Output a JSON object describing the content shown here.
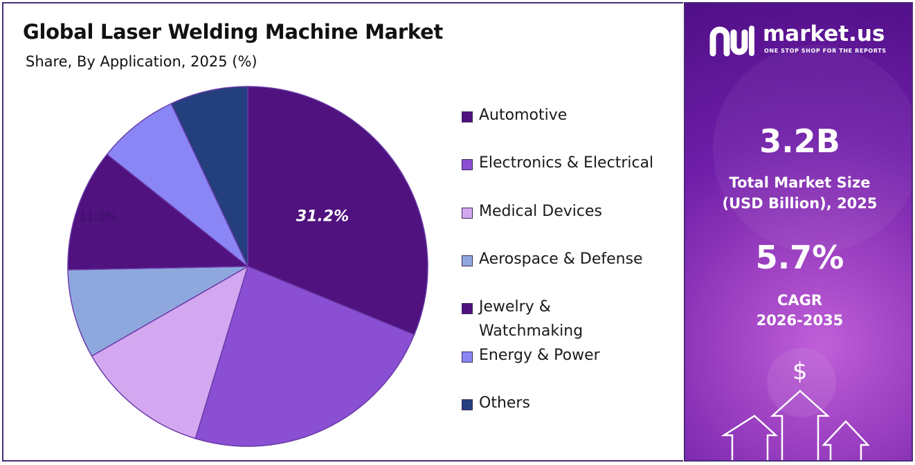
{
  "chart_data": {
    "type": "pie",
    "title": "Global Laser Welding Machine Market",
    "subtitle": "Share, By Application, 2025 (%)",
    "slices": [
      {
        "label": "Automotive",
        "value": 31.2,
        "color": "#4f127e",
        "data_label": "31.2%"
      },
      {
        "label": "Electronics & Electrical",
        "value": 23.5,
        "color": "#8a4fd2",
        "data_label": ""
      },
      {
        "label": "Medical Devices",
        "value": 12.0,
        "color": "#d3a8f0",
        "data_label": ""
      },
      {
        "label": "Aerospace & Defense",
        "value": 8.0,
        "color": "#8ea8de",
        "data_label": ""
      },
      {
        "label": "Jewelry & Watchmaking",
        "value": 11.0,
        "color": "#4f127e",
        "data_label": "11.0%"
      },
      {
        "label": "Energy & Power",
        "value": 7.3,
        "color": "#8a86f5",
        "data_label": ""
      },
      {
        "label": "Others",
        "value": 7.0,
        "color": "#243f7e",
        "data_label": ""
      }
    ],
    "legend_position": "right",
    "legend_labels": [
      "Automotive",
      "Electronics & Electrical",
      "Medical Devices",
      "Aerospace & Defense",
      "Jewelry & Watchmaking",
      "Energy & Power",
      "Others"
    ]
  },
  "brand": {
    "name": "market.us",
    "tagline": "ONE STOP SHOP FOR THE REPORTS"
  },
  "stats": {
    "market_size_value": "3.2B",
    "market_size_label_1": "Total Market Size",
    "market_size_label_2": "(USD Billion), 2025",
    "cagr_value": "5.7%",
    "cagr_label_1": "CAGR",
    "cagr_label_2": "2026-2035"
  },
  "icons": {
    "logo": "market-us-logo-icon",
    "dollar": "dollar-icon",
    "arrows": "growth-arrows-icon"
  }
}
